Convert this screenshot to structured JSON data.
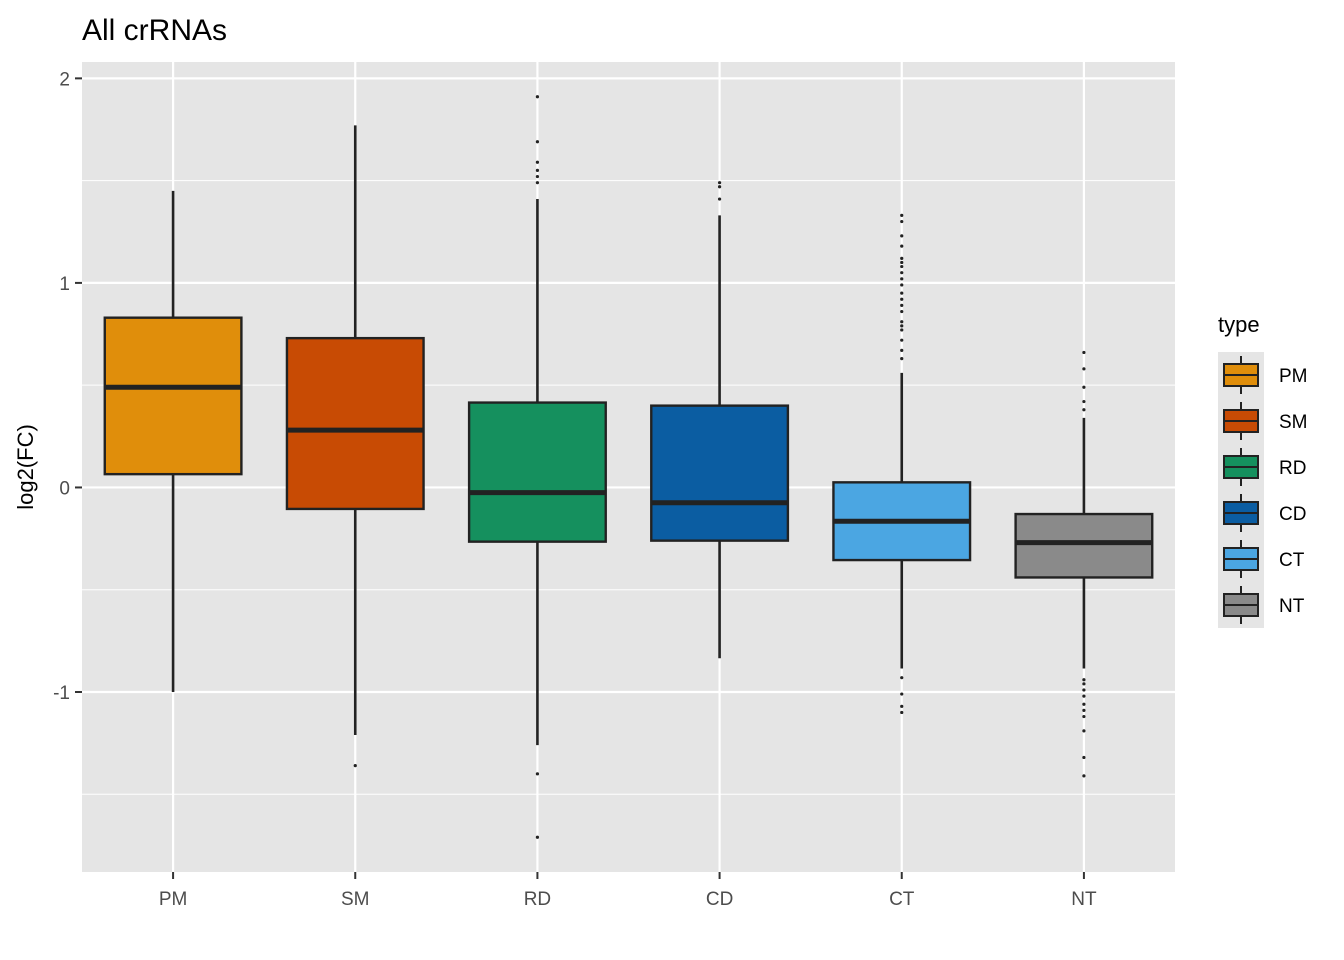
{
  "chart_data": {
    "type": "boxplot",
    "title": "All crRNAs",
    "xlabel": "",
    "ylabel": "log2(FC)",
    "ylim": [
      -1.88,
      2.08
    ],
    "yticks": [
      2,
      1,
      0,
      -1
    ],
    "ytick_labels": [
      "2",
      "1",
      "0",
      "-1"
    ],
    "grid": true,
    "legend": {
      "title": "type",
      "placement": "right"
    },
    "categories": [
      "PM",
      "SM",
      "RD",
      "CD",
      "CT",
      "NT"
    ],
    "series": [
      {
        "name": "PM",
        "color": "#E08E0B",
        "whisker_low": -1.0,
        "q1": 0.065,
        "median": 0.49,
        "q3": 0.83,
        "whisker_high": 1.45,
        "outliers": []
      },
      {
        "name": "SM",
        "color": "#C84B04",
        "whisker_low": -1.21,
        "q1": -0.105,
        "median": 0.28,
        "q3": 0.73,
        "whisker_high": 1.77,
        "outliers": [
          -1.36
        ]
      },
      {
        "name": "RD",
        "color": "#15905E",
        "whisker_low": -1.26,
        "q1": -0.265,
        "median": -0.025,
        "q3": 0.415,
        "whisker_high": 1.41,
        "outliers": [
          -1.4,
          -1.71,
          1.49,
          1.52,
          1.55,
          1.59,
          1.69,
          1.91
        ]
      },
      {
        "name": "CD",
        "color": "#0B5DA2",
        "whisker_low": -0.835,
        "q1": -0.26,
        "median": -0.075,
        "q3": 0.4,
        "whisker_high": 1.33,
        "outliers": [
          1.41,
          1.47,
          1.49
        ]
      },
      {
        "name": "CT",
        "color": "#4BA6E2",
        "whisker_low": -0.885,
        "q1": -0.355,
        "median": -0.165,
        "q3": 0.025,
        "whisker_high": 0.56,
        "outliers": [
          -0.93,
          -1.01,
          -1.07,
          -1.1,
          0.63,
          0.67,
          0.72,
          0.77,
          0.79,
          0.81,
          0.86,
          0.89,
          0.92,
          0.95,
          0.99,
          1.02,
          1.05,
          1.08,
          1.1,
          1.12,
          1.18,
          1.23,
          1.3,
          1.33
        ]
      },
      {
        "name": "NT",
        "color": "#8A8A8A",
        "whisker_low": -0.885,
        "q1": -0.44,
        "median": -0.27,
        "q3": -0.13,
        "whisker_high": 0.34,
        "outliers": [
          -0.94,
          -0.96,
          -0.99,
          -1.02,
          -1.06,
          -1.09,
          -1.12,
          -1.19,
          -1.32,
          -1.41,
          0.38,
          0.42,
          0.49,
          0.58,
          0.66
        ]
      }
    ]
  }
}
